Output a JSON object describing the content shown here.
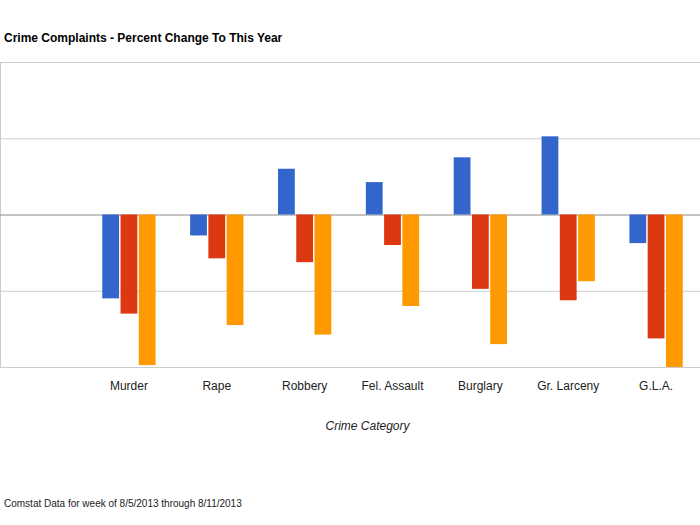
{
  "chart_data": {
    "type": "bar",
    "title": "Crime Complaints - Percent Change To This Year",
    "x_label": "Crime Category",
    "annotations": [
      "Comstat Data for week of 8/5/2013 through 8/11/2013"
    ],
    "categories": [
      "Murder",
      "Rape",
      "Robbery",
      "Fel. Assault",
      "Burglary",
      "Gr. Larceny",
      "G.L.A."
    ],
    "series": [
      {
        "color": "#3366cc",
        "values": [
          -44,
          -11,
          24,
          17,
          30,
          41,
          -15
        ]
      },
      {
        "color": "#dc3912",
        "values": [
          -52,
          -23,
          -25,
          -16,
          -39,
          -45,
          -65
        ]
      },
      {
        "color": "#ff9900",
        "values": [
          -79,
          -58,
          -63,
          -48,
          -68,
          -35,
          -80
        ]
      }
    ],
    "ylim": [
      -80,
      80
    ],
    "yticks": [
      -80,
      -40,
      0,
      40,
      80
    ],
    "grid": true,
    "tick_labels": "x"
  }
}
